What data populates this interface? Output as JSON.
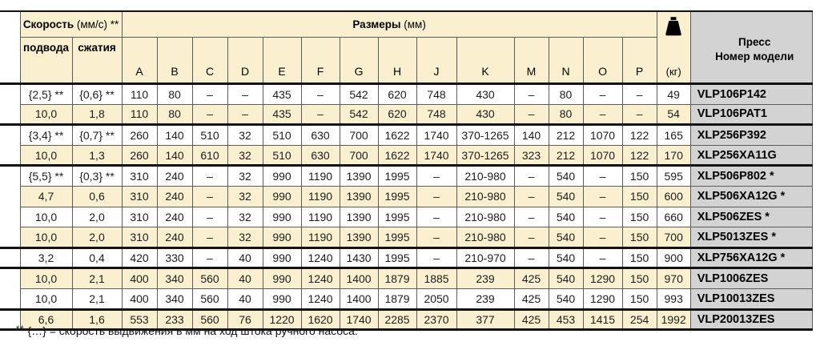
{
  "colors": {
    "cream": "#faf0d0",
    "gray": "#d3d3d3",
    "thin_border": "#5c5c5c",
    "thick_border": "#121212"
  },
  "header": {
    "speed_title_bold": "Скорость",
    "speed_title_rest": "(мм/с) **",
    "speed_sub": [
      "подвода",
      "сжатия"
    ],
    "dims_title_bold": "Размеры",
    "dims_title_rest": "(мм)",
    "dim_letters": [
      "A",
      "B",
      "C",
      "D",
      "E",
      "F",
      "G",
      "H",
      "J",
      "K",
      "M",
      "N",
      "O",
      "P"
    ],
    "weight_icon": "weight-icon",
    "weight_unit": "(кг)",
    "model_line1": "Пресс",
    "model_line2": "Номер модели"
  },
  "rows": [
    {
      "speed_in": "{2,5} **",
      "speed_out": "{0,6} **",
      "dims": [
        "110",
        "80",
        "–",
        "–",
        "435",
        "–",
        "542",
        "620",
        "748",
        "430",
        "–",
        "80",
        "–",
        "–"
      ],
      "kg": "49",
      "model": "VLP106P142",
      "group_end": false
    },
    {
      "speed_in": "10,0",
      "speed_out": "1,8",
      "dims": [
        "110",
        "80",
        "–",
        "–",
        "435",
        "–",
        "542",
        "620",
        "748",
        "430",
        "–",
        "80",
        "–",
        "–"
      ],
      "kg": "54",
      "model": "VLP106PAT1",
      "group_end": true
    },
    {
      "speed_in": "{3,4} **",
      "speed_out": "{0,7} **",
      "dims": [
        "260",
        "140",
        "510",
        "32",
        "510",
        "630",
        "700",
        "1622",
        "1740",
        "370-1265",
        "140",
        "212",
        "1070",
        "122"
      ],
      "kg": "165",
      "model": "XLP256P392",
      "group_end": false
    },
    {
      "speed_in": "10,0",
      "speed_out": "1,3",
      "dims": [
        "260",
        "140",
        "610",
        "32",
        "510",
        "630",
        "700",
        "1622",
        "1740",
        "370-1265",
        "323",
        "212",
        "1070",
        "122"
      ],
      "kg": "170",
      "model": "XLP256XA11G",
      "group_end": true
    },
    {
      "speed_in": "{5,5} **",
      "speed_out": "{0,3} **",
      "dims": [
        "310",
        "240",
        "–",
        "32",
        "990",
        "1190",
        "1390",
        "1995",
        "–",
        "210-980",
        "–",
        "540",
        "–",
        "150"
      ],
      "kg": "595",
      "model": "XLP506P802 *",
      "group_end": false
    },
    {
      "speed_in": "4,7",
      "speed_out": "0,6",
      "dims": [
        "310",
        "240",
        "–",
        "32",
        "990",
        "1190",
        "1390",
        "1995",
        "–",
        "210-980",
        "–",
        "540",
        "–",
        "150"
      ],
      "kg": "600",
      "model": "XLP506XA12G *",
      "group_end": false
    },
    {
      "speed_in": "10,0",
      "speed_out": "2,0",
      "dims": [
        "310",
        "240",
        "–",
        "32",
        "990",
        "1190",
        "1390",
        "1995",
        "–",
        "210-980",
        "–",
        "540",
        "–",
        "150"
      ],
      "kg": "660",
      "model": "XLP506ZES *",
      "group_end": false
    },
    {
      "speed_in": "10,0",
      "speed_out": "2,0",
      "dims": [
        "310",
        "240",
        "–",
        "32",
        "990",
        "1190",
        "1390",
        "1995",
        "–",
        "210-980",
        "–",
        "540",
        "–",
        "150"
      ],
      "kg": "700",
      "model": "XLP5013ZES *",
      "group_end": true
    },
    {
      "speed_in": "3,2",
      "speed_out": "0,4",
      "dims": [
        "420",
        "330",
        "–",
        "40",
        "990",
        "1240",
        "1430",
        "1995",
        "–",
        "210-970",
        "–",
        "540",
        "–",
        "150"
      ],
      "kg": "900",
      "model": "XLP756XA12G *",
      "group_end": true
    },
    {
      "speed_in": "10,0",
      "speed_out": "2,1",
      "dims": [
        "400",
        "340",
        "560",
        "40",
        "990",
        "1240",
        "1400",
        "1879",
        "1885",
        "239",
        "425",
        "540",
        "1290",
        "150"
      ],
      "kg": "970",
      "model": "VLP1006ZES",
      "group_end": false
    },
    {
      "speed_in": "10,0",
      "speed_out": "2,1",
      "dims": [
        "400",
        "340",
        "560",
        "40",
        "990",
        "1240",
        "1400",
        "1879",
        "2050",
        "239",
        "425",
        "540",
        "1290",
        "150"
      ],
      "kg": "993",
      "model": "VLP10013ZES",
      "group_end": true
    },
    {
      "speed_in": "6,6",
      "speed_out": "1,6",
      "dims": [
        "553",
        "233",
        "560",
        "76",
        "1220",
        "1620",
        "1740",
        "2285",
        "2370",
        "377",
        "425",
        "453",
        "1415",
        "254"
      ],
      "kg": "1992",
      "model": "VLP20013ZES",
      "group_end": true
    }
  ],
  "footnote": {
    "marker": "**",
    "text": "{…} = скорость выдвижения в мм на ход штока ручного насоса."
  }
}
